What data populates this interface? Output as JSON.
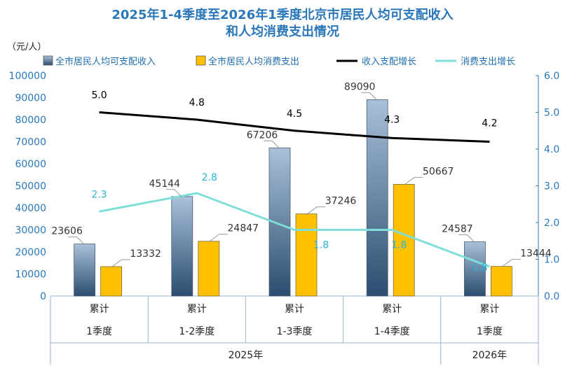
{
  "chart_data": {
    "type": "bar",
    "title_lines": [
      "2025年1-4季度至2026年1季度北京市居民人均可支配收入",
      "和人均消费支出情况"
    ],
    "unit_label": "（元/人）",
    "categories_row1": [
      "累计",
      "累计",
      "累计",
      "累计",
      "累计"
    ],
    "categories_row2": [
      "1季度",
      "1-2季度",
      "1-3季度",
      "1-4季度",
      "1季度"
    ],
    "year_groups": [
      {
        "label": "2025年",
        "span": [
          0,
          3
        ]
      },
      {
        "label": "2026年",
        "span": [
          4,
          4
        ]
      }
    ],
    "series": [
      {
        "name": "全市居民人均可支配收入",
        "kind": "bar",
        "axis": "left",
        "values": [
          23606,
          45144,
          67206,
          89090,
          24587
        ],
        "labels": [
          "23606",
          "45144",
          "67206",
          "89090",
          "24587"
        ]
      },
      {
        "name": "全市居民人均消费支出",
        "kind": "bar",
        "axis": "left",
        "values": [
          13332,
          24847,
          37246,
          50667,
          13444
        ],
        "labels": [
          "13332",
          "24847",
          "37246",
          "50667",
          "13444"
        ]
      },
      {
        "name": "收入支配增长",
        "kind": "line",
        "axis": "right",
        "values": [
          5.0,
          4.8,
          4.5,
          4.3,
          4.2
        ],
        "labels": [
          "5.0",
          "4.8",
          "4.5",
          "4.3",
          "4.2"
        ]
      },
      {
        "name": "消费支出增长",
        "kind": "line",
        "axis": "right",
        "values": [
          2.3,
          2.8,
          1.8,
          1.8,
          0.8
        ],
        "labels": [
          "2.3",
          "2.8",
          "1.8",
          "1.8",
          "0.8"
        ]
      }
    ],
    "y_left": {
      "min": 0,
      "max": 100000,
      "ticks": [
        "0",
        "10000",
        "20000",
        "30000",
        "40000",
        "50000",
        "60000",
        "70000",
        "80000",
        "90000",
        "100000"
      ]
    },
    "y_right": {
      "min": 0,
      "max": 6,
      "ticks": [
        "0.0",
        "1.0",
        "2.0",
        "3.0",
        "4.0",
        "5.0",
        "6.0"
      ]
    },
    "legend_position": "top",
    "grid": false,
    "colors": {
      "title": "#2a77b9",
      "axis_text": "#2a77b9",
      "income_bar_top": "#a9c1d9",
      "income_bar_bottom": "#2c4d70",
      "cons_bar": "#ffc000",
      "income_line": "#000000",
      "cons_line": "#7fded7",
      "cons_label": "#2ab3d4"
    }
  }
}
